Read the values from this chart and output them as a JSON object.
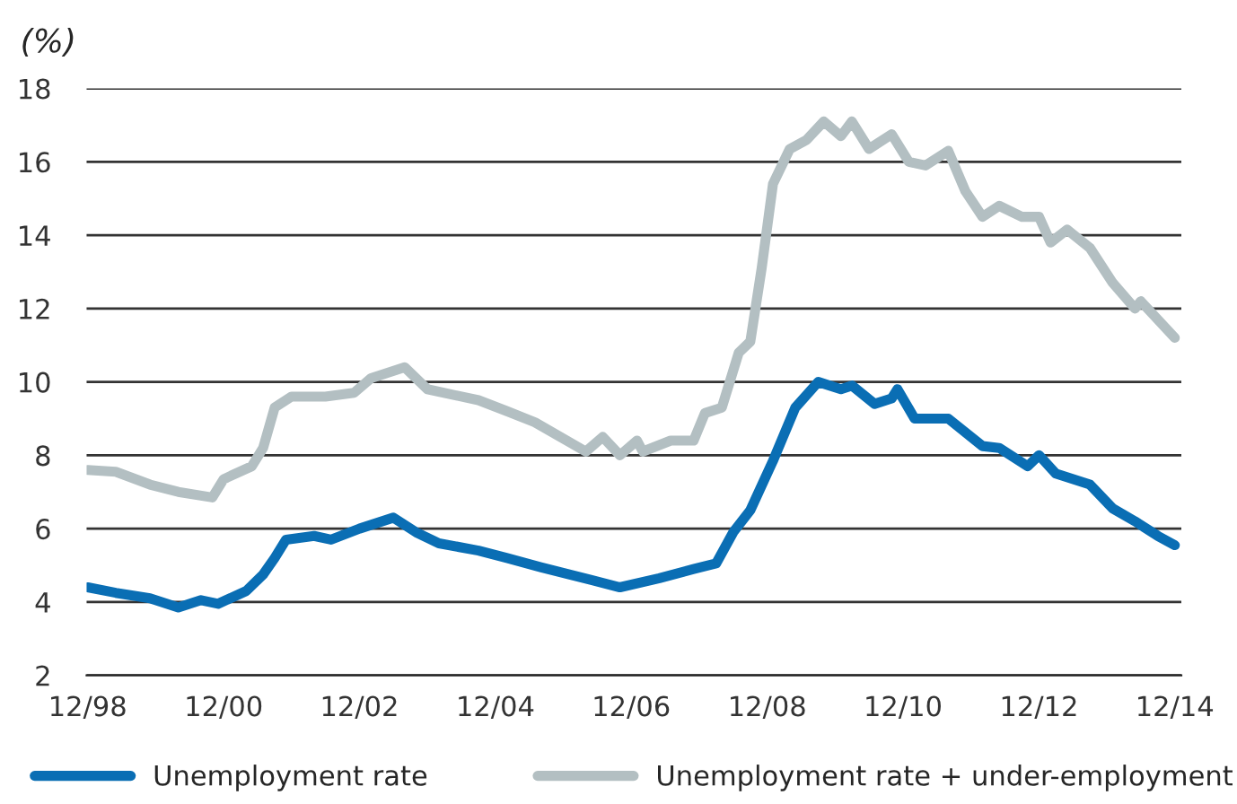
{
  "chart_data": {
    "type": "line",
    "ylabel": "(%)",
    "xlim": [
      "1998-11-25",
      "2015-01-05"
    ],
    "ylim": [
      2,
      18
    ],
    "yticks": [
      2,
      4,
      6,
      8,
      10,
      12,
      14,
      16,
      18
    ],
    "xticks": [
      {
        "value": "1998-12",
        "label": "12/98"
      },
      {
        "value": "2000-12",
        "label": "12/00"
      },
      {
        "value": "2002-12",
        "label": "12/02"
      },
      {
        "value": "2004-12",
        "label": "12/04"
      },
      {
        "value": "2006-12",
        "label": "12/06"
      },
      {
        "value": "2008-12",
        "label": "12/08"
      },
      {
        "value": "2010-12",
        "label": "12/10"
      },
      {
        "value": "2012-12",
        "label": "12/12"
      },
      {
        "value": "2014-12",
        "label": "12/14"
      }
    ],
    "grid": "y",
    "legend": "bottom",
    "marker": "none",
    "line_style": "solid",
    "series": [
      {
        "name": "Unemployment rate",
        "color": "#0a6eb4",
        "x": [
          "1998-12",
          "1999-05",
          "1999-11",
          "2000-04",
          "2000-08",
          "2000-11",
          "2001-04",
          "2001-07",
          "2001-09",
          "2001-11",
          "2002-04",
          "2002-07",
          "2002-12",
          "2003-06",
          "2003-10",
          "2004-02",
          "2004-09",
          "2005-02",
          "2005-08",
          "2006-01",
          "2006-05",
          "2006-10",
          "2007-05",
          "2007-11",
          "2008-03",
          "2008-06",
          "2008-09",
          "2009-01",
          "2009-05",
          "2009-09",
          "2010-01",
          "2010-03",
          "2010-07",
          "2010-10",
          "2010-11",
          "2011-02",
          "2011-08",
          "2012-02",
          "2012-05",
          "2012-10",
          "2012-12",
          "2013-03",
          "2013-09",
          "2014-01",
          "2014-05",
          "2014-09",
          "2014-12"
        ],
        "values": [
          4.4,
          4.25,
          4.1,
          3.85,
          4.05,
          3.95,
          4.3,
          4.75,
          5.2,
          5.7,
          5.8,
          5.7,
          6.0,
          6.3,
          5.9,
          5.6,
          5.4,
          5.2,
          4.95,
          4.75,
          4.6,
          4.4,
          4.65,
          4.9,
          5.05,
          5.9,
          6.5,
          7.85,
          9.3,
          10.0,
          9.8,
          9.9,
          9.4,
          9.55,
          9.8,
          9.0,
          9.0,
          8.25,
          8.2,
          7.7,
          8.0,
          7.5,
          7.2,
          6.55,
          6.2,
          5.8,
          5.55
        ]
      },
      {
        "name": "Unemployment rate + under-employment",
        "color": "#b3bfc2",
        "x": [
          "1998-12",
          "1999-05",
          "1999-11",
          "2000-04",
          "2000-10",
          "2000-12",
          "2001-05",
          "2001-07",
          "2001-09",
          "2001-12",
          "2002-06",
          "2002-11",
          "2003-02",
          "2003-08",
          "2003-12",
          "2004-09",
          "2005-02",
          "2005-07",
          "2006-04",
          "2006-07",
          "2006-10",
          "2007-01",
          "2007-02",
          "2007-07",
          "2007-11",
          "2008-01",
          "2008-04",
          "2008-07",
          "2008-09",
          "2008-11",
          "2009-01",
          "2009-04",
          "2009-07",
          "2009-10",
          "2010-01",
          "2010-03",
          "2010-06",
          "2010-10",
          "2011-01",
          "2011-04",
          "2011-08",
          "2011-11",
          "2012-02",
          "2012-05",
          "2012-09",
          "2012-12",
          "2013-02",
          "2013-05",
          "2013-09",
          "2014-01",
          "2014-05",
          "2014-06",
          "2014-12"
        ],
        "values": [
          7.6,
          7.55,
          7.2,
          7.0,
          6.85,
          7.35,
          7.7,
          8.2,
          9.3,
          9.6,
          9.6,
          9.7,
          10.1,
          10.4,
          9.8,
          9.5,
          9.2,
          8.9,
          8.1,
          8.5,
          8.0,
          8.4,
          8.1,
          8.4,
          8.4,
          9.15,
          9.3,
          10.8,
          11.1,
          13.1,
          15.4,
          16.35,
          16.6,
          17.1,
          16.7,
          17.1,
          16.35,
          16.75,
          16.0,
          15.9,
          16.3,
          15.2,
          14.5,
          14.8,
          14.5,
          14.5,
          13.8,
          14.15,
          13.65,
          12.7,
          12.0,
          12.2,
          11.2
        ]
      }
    ]
  }
}
